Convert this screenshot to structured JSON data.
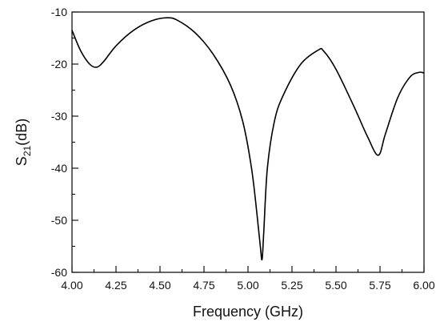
{
  "chart_data": {
    "type": "line",
    "title": "",
    "xlabel": "Frequency (GHz)",
    "ylabel": {
      "main": "S",
      "sub": "21",
      "unit": "(dB)"
    },
    "xlim": [
      4.0,
      6.0
    ],
    "ylim": [
      -60,
      -10
    ],
    "xticks": [
      "4.00",
      "4.25",
      "4.50",
      "4.75",
      "5.00",
      "5.25",
      "5.50",
      "5.75",
      "6.00"
    ],
    "yticks": [
      "-60",
      "-50",
      "-40",
      "-30",
      "-20",
      "-10"
    ],
    "grid": false,
    "legend": "none",
    "line_color": "#000000",
    "series": [
      {
        "x": [
          4.0,
          4.05,
          4.1,
          4.14,
          4.18,
          4.25,
          4.35,
          4.45,
          4.54,
          4.6,
          4.7,
          4.8,
          4.9,
          4.97,
          5.02,
          5.05,
          5.07,
          5.08,
          5.09,
          5.11,
          5.15,
          5.2,
          5.3,
          5.4,
          5.43,
          5.5,
          5.6,
          5.68,
          5.74,
          5.78,
          5.85,
          5.92,
          5.97,
          6.0
        ],
        "y": [
          -13.5,
          -17.5,
          -20.0,
          -20.6,
          -19.5,
          -16.5,
          -13.5,
          -11.7,
          -11.1,
          -11.6,
          -14.0,
          -18.0,
          -24.0,
          -31.0,
          -40.0,
          -48.5,
          -55.0,
          -57.5,
          -52.0,
          -40.0,
          -31.0,
          -26.0,
          -20.0,
          -17.3,
          -17.5,
          -21.0,
          -28.0,
          -34.0,
          -37.5,
          -33.5,
          -26.5,
          -22.5,
          -21.6,
          -21.7
        ]
      }
    ]
  }
}
